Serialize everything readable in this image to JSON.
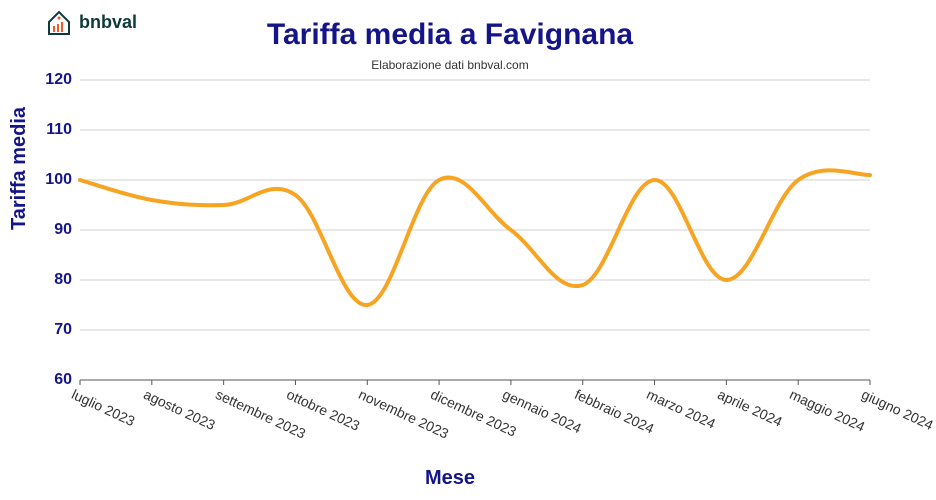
{
  "logo": {
    "text": "bnbval"
  },
  "title": "Tariffa media a Favignana",
  "subtitle": "Elaborazione dati bnbval.com",
  "y_axis_label": "Tariffa media",
  "x_axis_label": "Mese",
  "chart": {
    "type": "line",
    "background_color": "#ffffff",
    "grid_color": "#d0d0d0",
    "axis_color": "#555555",
    "title_color": "#15158a",
    "tick_label_color_y": "#15158a",
    "tick_label_color_x": "#333333",
    "title_fontsize": 30,
    "subtitle_fontsize": 12,
    "axis_label_fontsize": 20,
    "tick_fontsize_y": 16,
    "tick_fontsize_x": 14,
    "line_color": "#f7a423",
    "line_width": 4,
    "smooth": true,
    "ylim": [
      60,
      120
    ],
    "ytick_step": 10,
    "yticks": [
      60,
      70,
      80,
      90,
      100,
      110,
      120
    ],
    "x_labels": [
      "luglio 2023",
      "agosto 2023",
      "settembre 2023",
      "ottobre 2023",
      "novembre 2023",
      "dicembre 2023",
      "gennaio 2024",
      "febbraio 2024",
      "marzo 2024",
      "aprile 2024",
      "maggio 2024",
      "giugno 2024"
    ],
    "values": [
      100,
      96,
      95,
      97,
      75,
      100,
      90,
      79,
      100,
      80,
      100,
      101
    ]
  }
}
